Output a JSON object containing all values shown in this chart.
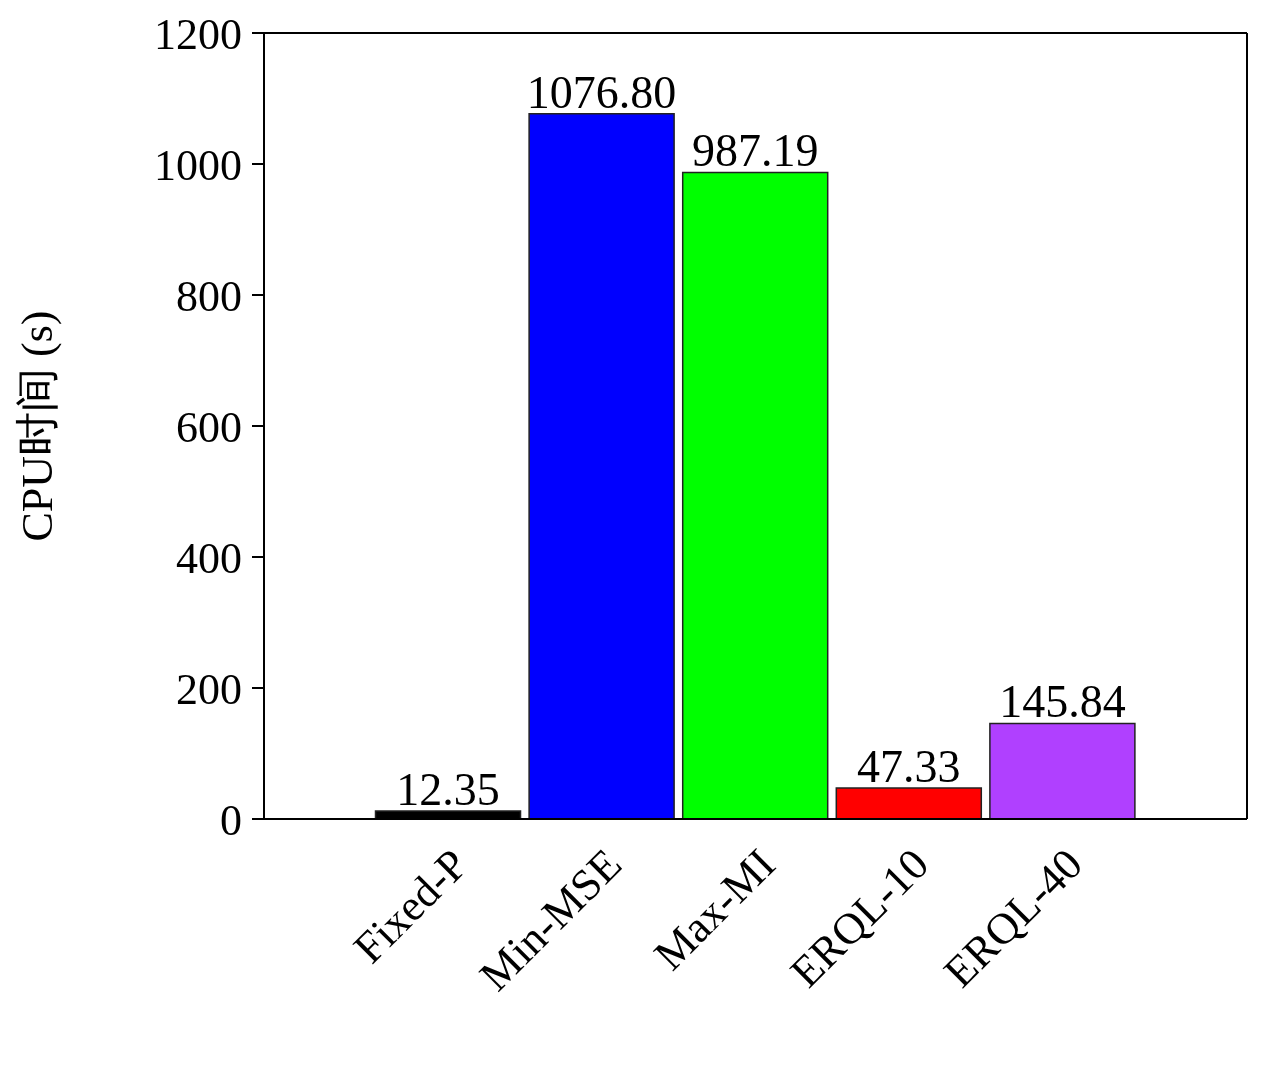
{
  "chart_data": {
    "type": "bar",
    "ylabel": "CPU时间 (s)",
    "categories": [
      "Fixed-P",
      "Min-MSE",
      "Max-MI",
      "ERQL-10",
      "ERQL-40"
    ],
    "values": [
      12.35,
      1076.8,
      987.19,
      47.33,
      145.84
    ],
    "colors": [
      "#000000",
      "#0000ff",
      "#00ff00",
      "#ff0000",
      "#b040ff"
    ],
    "value_labels": [
      "12.35",
      "1076.80",
      "987.19",
      "47.33",
      "145.84"
    ],
    "ylim": [
      0,
      1200
    ],
    "yticks": [
      0,
      200,
      400,
      600,
      800,
      1000,
      1200
    ],
    "grid": false,
    "legend": false
  }
}
